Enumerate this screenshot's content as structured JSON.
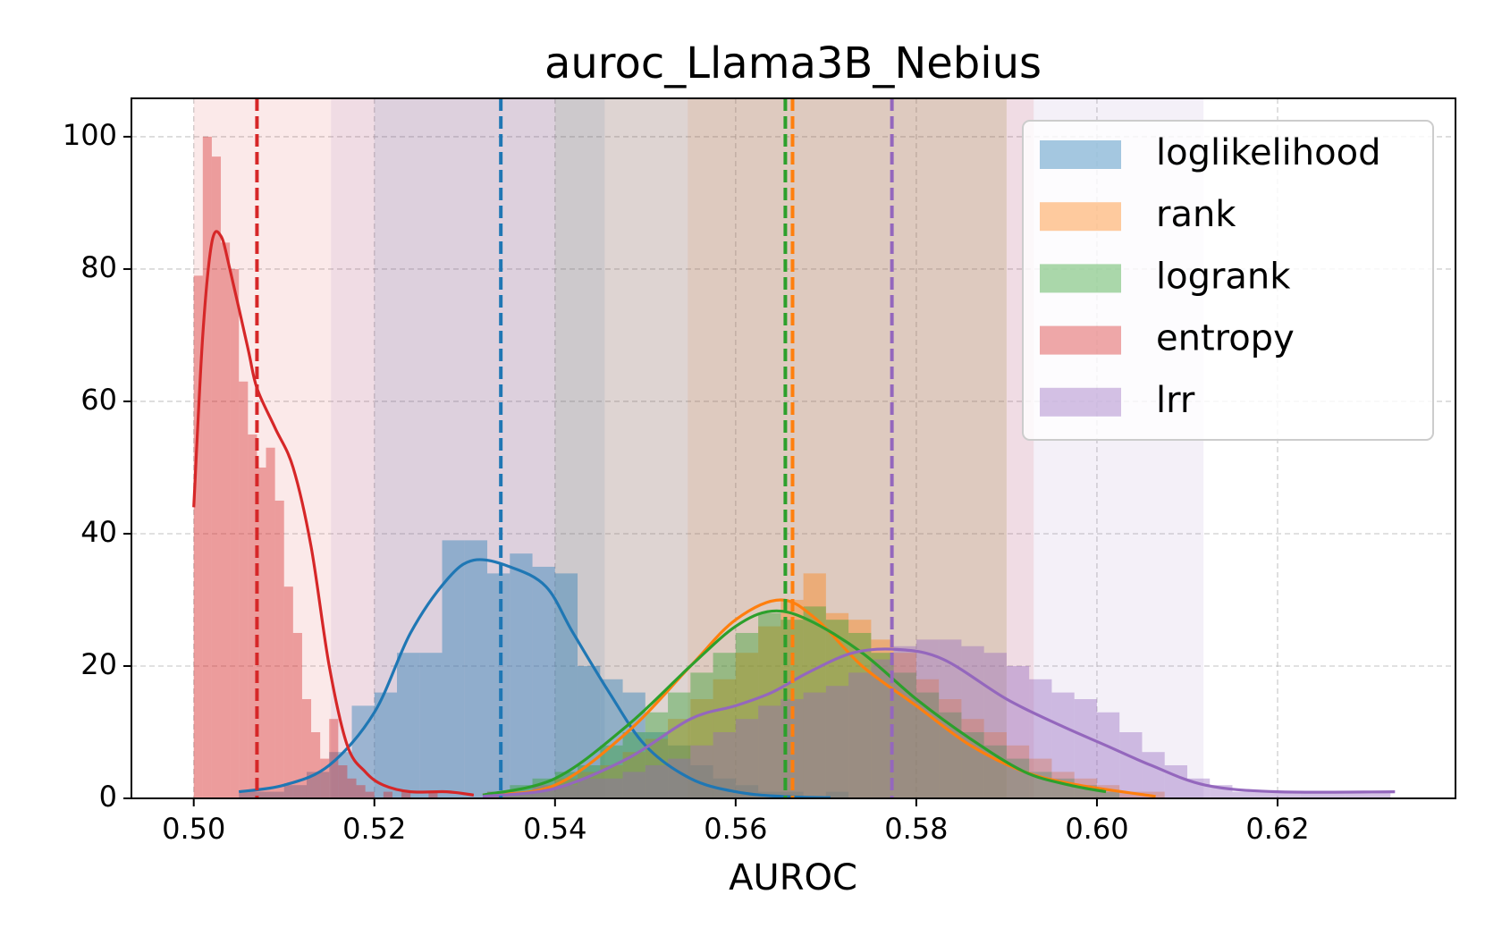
{
  "chart_data": {
    "type": "histogram",
    "title": "auroc_Llama3B_Nebius",
    "x_label": "AUROC",
    "xlim": [
      0.4931,
      0.6397
    ],
    "ylim": [
      0,
      105.8
    ],
    "xticks": [
      {
        "value": 0.5,
        "label": "0.50"
      },
      {
        "value": 0.52,
        "label": "0.52"
      },
      {
        "value": 0.54,
        "label": "0.54"
      },
      {
        "value": 0.56,
        "label": "0.56"
      },
      {
        "value": 0.58,
        "label": "0.58"
      },
      {
        "value": 0.6,
        "label": "0.60"
      },
      {
        "value": 0.62,
        "label": "0.62"
      }
    ],
    "yticks": [
      0,
      20,
      40,
      60,
      80,
      100
    ],
    "grid": true,
    "legend": "upper right",
    "series": [
      {
        "name": "loglikelihood",
        "color": "#1f77b4",
        "bins": [
          0.505,
          0.5075,
          0.51,
          0.5125,
          0.515,
          0.5175,
          0.52,
          0.5225,
          0.525,
          0.5275,
          0.53,
          0.5325,
          0.535,
          0.5375,
          0.54,
          0.5425,
          0.545,
          0.5475,
          0.55,
          0.5525,
          0.555,
          0.5575,
          0.56,
          0.5625,
          0.565,
          0.5675,
          0.57,
          0.5725
        ],
        "values": [
          1,
          1,
          2,
          4,
          7,
          14,
          16,
          22,
          22,
          39,
          39,
          34,
          37,
          35,
          34,
          20,
          18,
          16,
          10,
          8,
          5,
          3,
          2,
          1,
          1,
          0,
          1
        ],
        "kde_x": [
          0.505,
          0.51,
          0.515,
          0.52,
          0.524,
          0.528,
          0.531,
          0.535,
          0.539,
          0.542,
          0.546,
          0.55,
          0.555,
          0.56,
          0.565,
          0.5705
        ],
        "kde_y": [
          1,
          2,
          5,
          13,
          25,
          33,
          36,
          35,
          32,
          25,
          16,
          8,
          3,
          1,
          0.3,
          0.1
        ],
        "mean": 0.534,
        "ci": [
          0.52,
          0.5455
        ]
      },
      {
        "name": "rank",
        "color": "#ff7f0e",
        "bins": [
          0.5325,
          0.535,
          0.5375,
          0.54,
          0.5425,
          0.545,
          0.5475,
          0.55,
          0.5525,
          0.555,
          0.5575,
          0.56,
          0.5625,
          0.565,
          0.5675,
          0.57,
          0.5725,
          0.575,
          0.5775,
          0.58,
          0.5825,
          0.585,
          0.5875,
          0.59,
          0.5925,
          0.595,
          0.5975,
          0.6,
          0.6025,
          0.605,
          0.6075
        ],
        "values": [
          1,
          1,
          2,
          3,
          4,
          5,
          7,
          9,
          12,
          15,
          18,
          22,
          26,
          30,
          34,
          28,
          27,
          24,
          22,
          18,
          15,
          12,
          10,
          8,
          6,
          4,
          3,
          2,
          1,
          1
        ],
        "kde_x": [
          0.532,
          0.54,
          0.548,
          0.555,
          0.56,
          0.565,
          0.569,
          0.574,
          0.58,
          0.586,
          0.592,
          0.598,
          0.6065
        ],
        "kde_y": [
          0.5,
          2,
          10,
          20,
          27,
          30,
          27,
          20,
          14,
          8,
          4,
          2,
          0.3
        ],
        "mean": 0.5663,
        "ci": [
          0.5547,
          0.59
        ]
      },
      {
        "name": "logrank",
        "color": "#2ca02c",
        "bins": [
          0.5325,
          0.535,
          0.5375,
          0.54,
          0.5425,
          0.545,
          0.5475,
          0.55,
          0.5525,
          0.555,
          0.5575,
          0.56,
          0.5625,
          0.565,
          0.5675,
          0.57,
          0.5725,
          0.575,
          0.5775,
          0.58,
          0.5825,
          0.585,
          0.5875,
          0.59,
          0.5925,
          0.595,
          0.5975,
          0.6,
          0.6025
        ],
        "values": [
          1,
          2,
          3,
          4,
          5,
          8,
          10,
          13,
          16,
          19,
          22,
          25,
          28,
          27,
          29,
          27,
          25,
          22,
          19,
          16,
          13,
          10,
          8,
          6,
          4,
          3,
          2,
          1
        ],
        "kde_x": [
          0.532,
          0.54,
          0.548,
          0.555,
          0.56,
          0.564,
          0.568,
          0.574,
          0.58,
          0.586,
          0.592,
          0.597,
          0.601
        ],
        "kde_y": [
          0.5,
          3,
          11,
          20,
          26,
          28.3,
          27,
          22,
          15,
          9,
          4,
          2,
          1
        ],
        "mean": 0.5655,
        "ci": [
          0.54,
          0.59
        ]
      },
      {
        "name": "entropy",
        "color": "#d62728",
        "bins": [
          0.5,
          0.501,
          0.502,
          0.503,
          0.504,
          0.505,
          0.506,
          0.507,
          0.508,
          0.509,
          0.51,
          0.511,
          0.512,
          0.513,
          0.514,
          0.515,
          0.516,
          0.517,
          0.518,
          0.519,
          0.52,
          0.521,
          0.522,
          0.523,
          0.524,
          0.525,
          0.526,
          0.527,
          0.528,
          0.529,
          0.53
        ],
        "values": [
          79,
          100,
          97,
          84,
          80,
          63,
          55,
          50,
          53,
          45,
          32,
          25,
          15,
          10,
          6,
          12,
          5,
          3,
          2,
          1,
          0,
          1,
          0,
          1,
          0,
          0,
          1,
          0,
          0,
          0
        ],
        "kde_x": [
          0.5,
          0.501,
          0.502,
          0.503,
          0.504,
          0.506,
          0.507,
          0.509,
          0.511,
          0.513,
          0.515,
          0.517,
          0.519,
          0.521,
          0.524,
          0.528,
          0.531
        ],
        "kde_y": [
          44,
          70,
          84,
          85,
          80,
          68,
          62,
          56,
          50,
          38,
          20,
          8,
          4,
          2,
          1,
          1,
          0.5
        ],
        "mean": 0.507,
        "ci": [
          0.5,
          0.593
        ]
      },
      {
        "name": "lrr",
        "color": "#9467bd",
        "bins": [
          0.5325,
          0.535,
          0.5375,
          0.54,
          0.5425,
          0.545,
          0.5475,
          0.55,
          0.5525,
          0.555,
          0.5575,
          0.56,
          0.5625,
          0.565,
          0.5675,
          0.57,
          0.5725,
          0.575,
          0.5775,
          0.58,
          0.5825,
          0.585,
          0.5875,
          0.59,
          0.5925,
          0.595,
          0.5975,
          0.6,
          0.6025,
          0.605,
          0.6075,
          0.61,
          0.6125,
          0.615,
          0.6175,
          0.62,
          0.6225,
          0.625,
          0.6275,
          0.63,
          0.6325
        ],
        "values": [
          1,
          1,
          2,
          2,
          3,
          3,
          4,
          5,
          6,
          8,
          10,
          12,
          14,
          15,
          16,
          17,
          19,
          21,
          23,
          24,
          24,
          23,
          22,
          20,
          18,
          16,
          15,
          13,
          10,
          7,
          5,
          3,
          2,
          1,
          1,
          1,
          1,
          1,
          1,
          1
        ],
        "kde_x": [
          0.532,
          0.54,
          0.548,
          0.555,
          0.56,
          0.564,
          0.568,
          0.573,
          0.578,
          0.583,
          0.59,
          0.596,
          0.601,
          0.606,
          0.612,
          0.62,
          0.633
        ],
        "kde_y": [
          0.3,
          1.5,
          6,
          12,
          14,
          16,
          19,
          22,
          22.5,
          21,
          15,
          11,
          8,
          5,
          2,
          1,
          1
        ],
        "mean": 0.5773,
        "ci": [
          0.5152,
          0.6118
        ]
      }
    ]
  }
}
